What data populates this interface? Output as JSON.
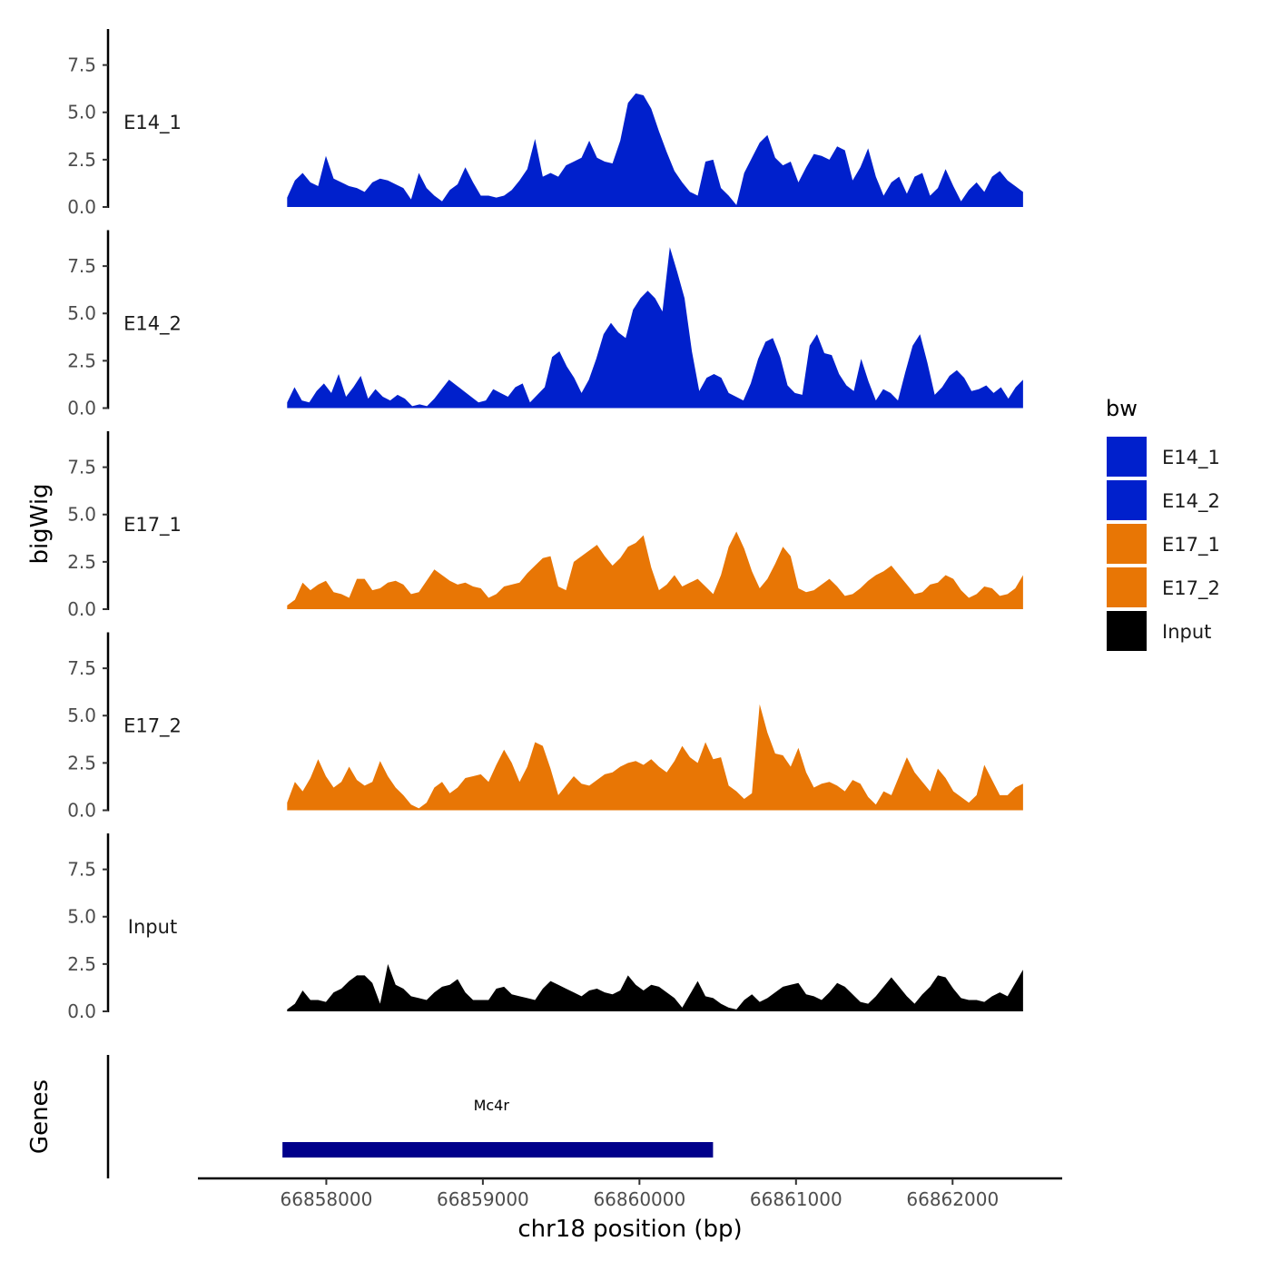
{
  "chart_data": {
    "type": "area",
    "ylabel": "bigWig",
    "xlabel": "chr18 position (bp)",
    "genes_label": "Genes",
    "xlim": [
      66857180,
      66862700
    ],
    "data_xrange": [
      66857750,
      66862450
    ],
    "xticks": [
      66858000,
      66859000,
      66860000,
      66861000,
      66862000
    ],
    "xtick_labels": [
      "66858000",
      "66859000",
      "66860000",
      "66861000",
      "66862000"
    ],
    "ylim": [
      0,
      9.4
    ],
    "yticks": [
      0,
      2.5,
      5,
      7.5
    ],
    "ytick_labels": [
      "0.0",
      "2.5",
      "5.0",
      "7.5"
    ],
    "legend": {
      "title": "bw",
      "position": "right",
      "entries": [
        {
          "label": "E14_1",
          "color": "#0020CC"
        },
        {
          "label": "E14_2",
          "color": "#0020CC"
        },
        {
          "label": "E17_1",
          "color": "#E87605"
        },
        {
          "label": "E17_2",
          "color": "#E87605"
        },
        {
          "label": "Input",
          "color": "#000000"
        }
      ]
    },
    "series": [
      {
        "name": "E14_1",
        "color": "#0020CC",
        "values": [
          0.5,
          1.4,
          1.8,
          1.3,
          1.1,
          2.7,
          1.5,
          1.3,
          1.1,
          1.0,
          0.8,
          1.3,
          1.5,
          1.4,
          1.2,
          1.0,
          0.4,
          1.8,
          1.0,
          0.6,
          0.3,
          0.9,
          1.2,
          2.1,
          1.3,
          0.6,
          0.6,
          0.5,
          0.6,
          0.9,
          1.4,
          2.0,
          3.6,
          1.6,
          1.8,
          1.6,
          2.2,
          2.4,
          2.6,
          3.5,
          2.6,
          2.4,
          2.3,
          3.5,
          5.5,
          6.0,
          5.9,
          5.2,
          4.0,
          2.9,
          1.9,
          1.3,
          0.8,
          0.6,
          2.4,
          2.5,
          1.0,
          0.6,
          0.1,
          1.8,
          2.6,
          3.4,
          3.8,
          2.6,
          2.2,
          2.4,
          1.3,
          2.1,
          2.8,
          2.7,
          2.5,
          3.2,
          3.0,
          1.4,
          2.1,
          3.1,
          1.6,
          0.6,
          1.3,
          1.6,
          0.7,
          1.6,
          1.8,
          0.6,
          1.0,
          2.0,
          1.1,
          0.3,
          0.9,
          1.3,
          0.8,
          1.6,
          1.9,
          1.4,
          1.1,
          0.8
        ]
      },
      {
        "name": "E14_2",
        "color": "#0020CC",
        "values": [
          0.3,
          1.1,
          0.4,
          0.3,
          0.9,
          1.3,
          0.8,
          1.8,
          0.6,
          1.1,
          1.7,
          0.5,
          1.0,
          0.6,
          0.4,
          0.7,
          0.5,
          0.1,
          0.2,
          0.1,
          0.5,
          1.0,
          1.5,
          1.2,
          0.9,
          0.6,
          0.3,
          0.4,
          1.0,
          0.8,
          0.6,
          1.1,
          1.3,
          0.3,
          0.7,
          1.1,
          2.7,
          3.0,
          2.2,
          1.6,
          0.8,
          1.5,
          2.6,
          3.9,
          4.5,
          4.0,
          3.7,
          5.2,
          5.8,
          6.2,
          5.8,
          5.1,
          8.5,
          7.2,
          5.8,
          3.0,
          0.9,
          1.6,
          1.8,
          1.6,
          0.8,
          0.6,
          0.4,
          1.3,
          2.6,
          3.5,
          3.7,
          2.7,
          1.2,
          0.8,
          0.7,
          3.3,
          3.9,
          2.9,
          2.8,
          1.8,
          1.2,
          0.9,
          2.6,
          1.4,
          0.4,
          1.0,
          0.8,
          0.4,
          1.9,
          3.3,
          3.9,
          2.4,
          0.7,
          1.1,
          1.7,
          2.0,
          1.6,
          0.9,
          1.0,
          1.2,
          0.8,
          1.1,
          0.5,
          1.1,
          1.5
        ]
      },
      {
        "name": "E17_1",
        "color": "#E87605",
        "values": [
          0.2,
          0.5,
          1.4,
          1.0,
          1.3,
          1.5,
          0.9,
          0.8,
          0.6,
          1.6,
          1.6,
          1.0,
          1.1,
          1.4,
          1.5,
          1.3,
          0.8,
          0.9,
          1.5,
          2.1,
          1.8,
          1.5,
          1.3,
          1.4,
          1.2,
          1.1,
          0.6,
          0.8,
          1.2,
          1.3,
          1.4,
          1.9,
          2.3,
          2.7,
          2.8,
          1.2,
          1.0,
          2.5,
          2.8,
          3.1,
          3.4,
          2.8,
          2.3,
          2.7,
          3.3,
          3.5,
          3.9,
          2.2,
          1.0,
          1.3,
          1.8,
          1.2,
          1.4,
          1.6,
          1.2,
          0.8,
          1.8,
          3.3,
          4.1,
          3.2,
          2.0,
          1.1,
          1.6,
          2.4,
          3.3,
          2.8,
          1.1,
          0.9,
          1.0,
          1.3,
          1.6,
          1.2,
          0.7,
          0.8,
          1.1,
          1.5,
          1.8,
          2.0,
          2.3,
          1.8,
          1.3,
          0.8,
          0.9,
          1.3,
          1.4,
          1.8,
          1.6,
          1.0,
          0.6,
          0.8,
          1.2,
          1.1,
          0.7,
          0.8,
          1.1,
          1.8
        ]
      },
      {
        "name": "E17_2",
        "color": "#E87605",
        "values": [
          0.4,
          1.5,
          1.0,
          1.7,
          2.7,
          1.8,
          1.2,
          1.5,
          2.3,
          1.6,
          1.3,
          1.5,
          2.6,
          1.8,
          1.2,
          0.8,
          0.3,
          0.1,
          0.4,
          1.2,
          1.5,
          0.9,
          1.2,
          1.7,
          1.8,
          1.9,
          1.5,
          2.4,
          3.2,
          2.5,
          1.5,
          2.3,
          3.6,
          3.4,
          2.2,
          0.8,
          1.3,
          1.8,
          1.4,
          1.3,
          1.6,
          1.9,
          2.0,
          2.3,
          2.5,
          2.6,
          2.4,
          2.7,
          2.3,
          2.0,
          2.6,
          3.4,
          2.8,
          2.5,
          3.6,
          2.7,
          2.8,
          1.3,
          1.0,
          0.6,
          0.9,
          5.6,
          4.1,
          3.0,
          2.9,
          2.3,
          3.3,
          2.0,
          1.2,
          1.4,
          1.5,
          1.3,
          1.0,
          1.6,
          1.4,
          0.7,
          0.3,
          1.0,
          0.8,
          1.8,
          2.8,
          2.0,
          1.5,
          1.0,
          2.2,
          1.7,
          1.0,
          0.7,
          0.4,
          0.8,
          2.4,
          1.6,
          0.8,
          0.8,
          1.2,
          1.4
        ]
      },
      {
        "name": "Input",
        "color": "#000000",
        "values": [
          0.1,
          0.4,
          1.1,
          0.6,
          0.6,
          0.5,
          1.0,
          1.2,
          1.6,
          1.9,
          1.9,
          1.5,
          0.4,
          2.5,
          1.4,
          1.2,
          0.8,
          0.7,
          0.6,
          1.0,
          1.3,
          1.4,
          1.7,
          1.0,
          0.6,
          0.6,
          0.6,
          1.2,
          1.3,
          0.9,
          0.8,
          0.7,
          0.6,
          1.2,
          1.6,
          1.4,
          1.2,
          1.0,
          0.8,
          1.1,
          1.2,
          1.0,
          0.9,
          1.1,
          1.9,
          1.4,
          1.1,
          1.4,
          1.3,
          1.0,
          0.7,
          0.2,
          0.9,
          1.6,
          0.8,
          0.7,
          0.4,
          0.2,
          0.1,
          0.6,
          0.9,
          0.5,
          0.7,
          1.0,
          1.3,
          1.4,
          1.5,
          0.9,
          0.8,
          0.6,
          1.0,
          1.5,
          1.3,
          0.9,
          0.5,
          0.4,
          0.8,
          1.3,
          1.8,
          1.3,
          0.8,
          0.4,
          0.9,
          1.3,
          1.9,
          1.8,
          1.2,
          0.7,
          0.6,
          0.6,
          0.5,
          0.8,
          1.0,
          0.8,
          1.5,
          2.2
        ]
      }
    ],
    "gene_track": {
      "gene": "Mc4r",
      "start": 66857720,
      "end": 66860470,
      "color": "#00008B"
    }
  }
}
